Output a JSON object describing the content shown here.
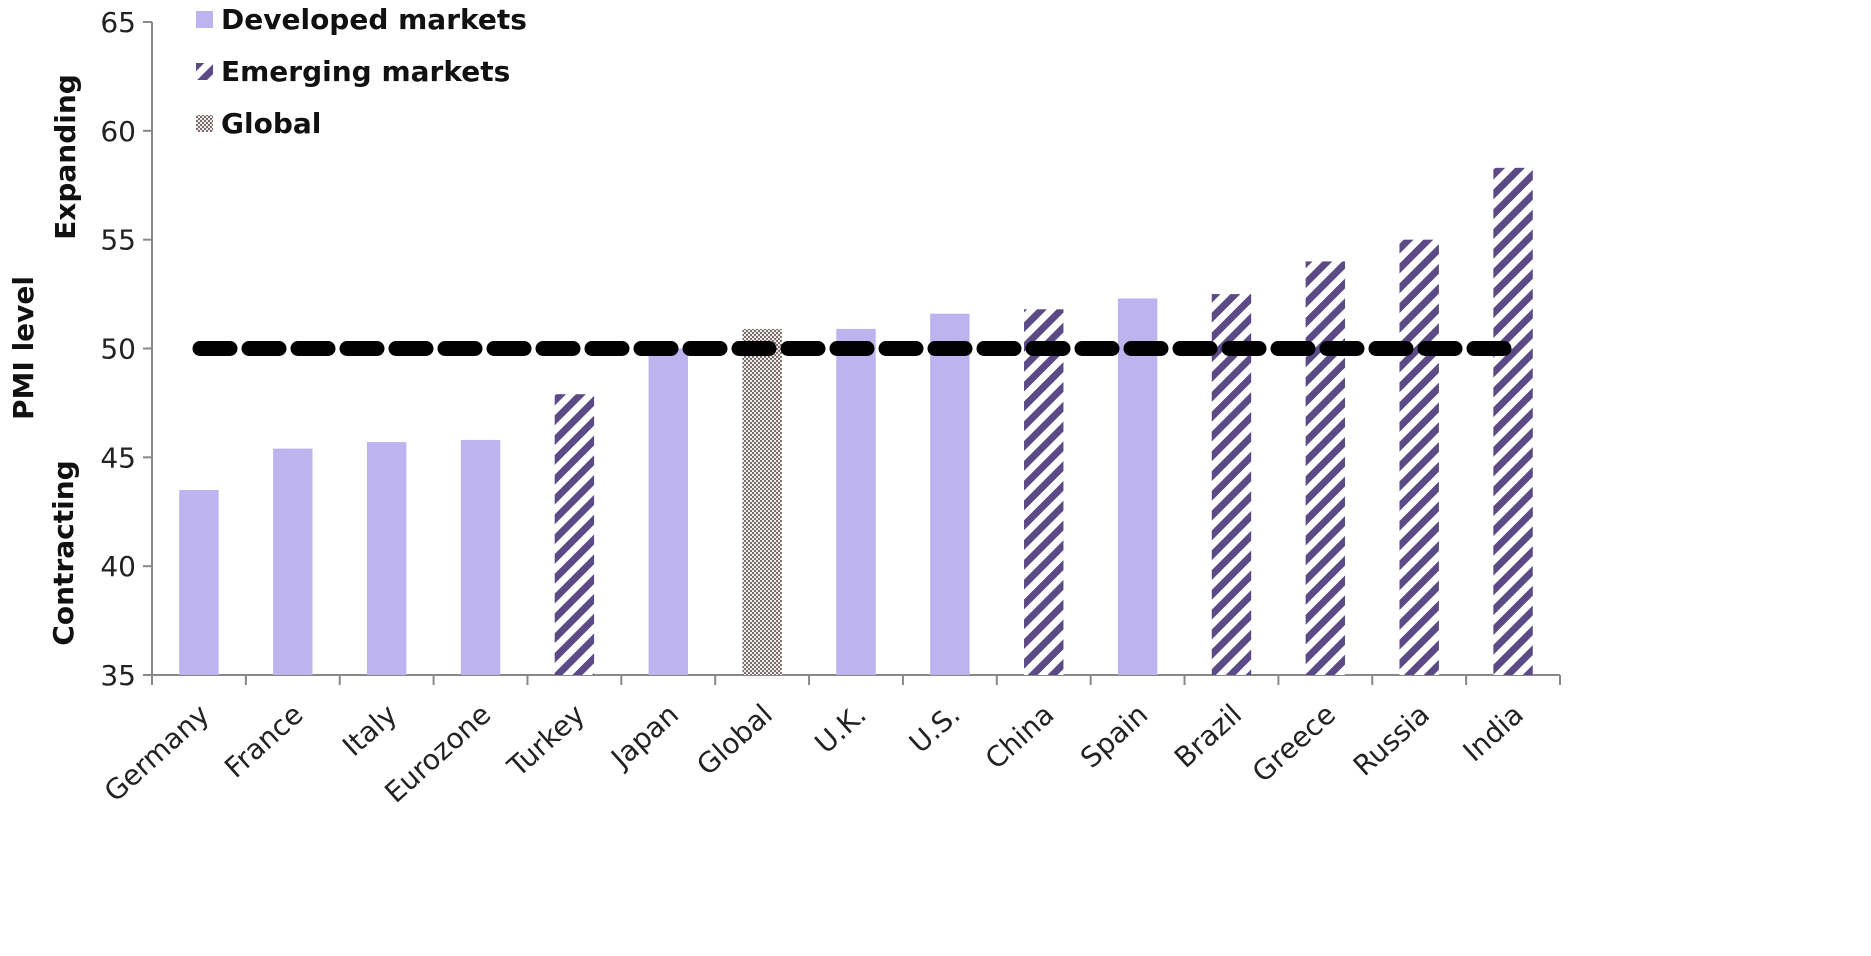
{
  "chart_data": {
    "type": "bar",
    "categories": [
      "Germany",
      "France",
      "Italy",
      "Eurozone",
      "Turkey",
      "Japan",
      "Global",
      "U.K.",
      "U.S.",
      "China",
      "Spain",
      "Brazil",
      "Greece",
      "Russia",
      "India"
    ],
    "values": [
      43.5,
      45.4,
      45.7,
      45.8,
      47.9,
      50.0,
      50.9,
      50.9,
      51.6,
      51.8,
      52.3,
      52.5,
      54.0,
      55.0,
      58.3
    ],
    "groups": [
      "Developed markets",
      "Developed markets",
      "Developed markets",
      "Developed markets",
      "Emerging markets",
      "Developed markets",
      "Global",
      "Developed markets",
      "Developed markets",
      "Emerging markets",
      "Developed markets",
      "Emerging markets",
      "Emerging markets",
      "Emerging markets",
      "Emerging markets"
    ],
    "legend": [
      "Developed markets",
      "Emerging markets",
      "Global"
    ],
    "legend_placement": "top-left",
    "ylabel": "PMI level",
    "ylabel_upper": "Expanding",
    "ylabel_lower": "Contracting",
    "ylim": [
      35,
      65
    ],
    "yticks": [
      35,
      40,
      45,
      50,
      55,
      60,
      65
    ],
    "reference_line": {
      "y": 50,
      "style": "dashed",
      "color": "#000000"
    },
    "grid": false,
    "colors": {
      "developed": "#bdb3ef",
      "emerging_stripe": "#5c4a86",
      "global_fill": "#9a8e8e",
      "axis": "#888888"
    }
  }
}
